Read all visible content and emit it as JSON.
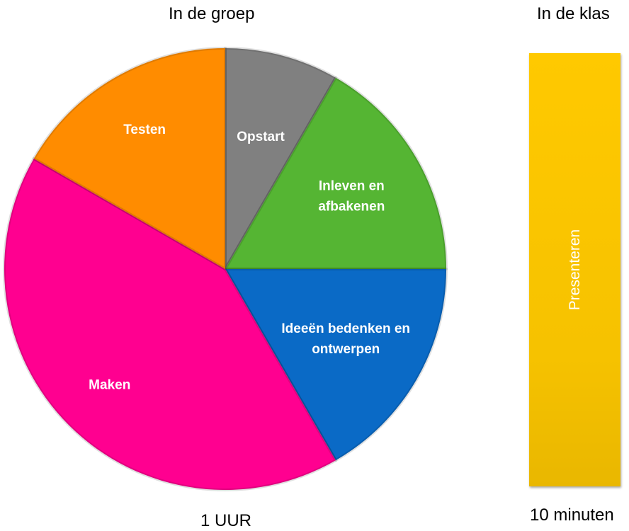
{
  "left": {
    "title": "In de groep",
    "footer": "1 UUR"
  },
  "right": {
    "title": "In de klas",
    "footer": "10 minuten",
    "bar_label": "Presenteren",
    "bar_color": "#ffc900"
  },
  "chart_data": [
    {
      "type": "pie",
      "title": "In de groep",
      "total_label": "1 UUR",
      "slices": [
        {
          "label": "Opstart",
          "value": 5,
          "color": "#808080"
        },
        {
          "label": "Inleven en afbakenen",
          "value": 10,
          "color": "#55b533"
        },
        {
          "label": "Ideeën bedenken en ontwerpen",
          "value": 10,
          "color": "#0a6ac6"
        },
        {
          "label": "Maken",
          "value": 25,
          "color": "#ff0090"
        },
        {
          "label": "Testen",
          "value": 10,
          "color": "#ff8c00"
        }
      ]
    },
    {
      "type": "bar",
      "title": "In de klas",
      "categories": [
        "Presenteren"
      ],
      "values": [
        10
      ],
      "unit_label": "10 minuten"
    }
  ]
}
